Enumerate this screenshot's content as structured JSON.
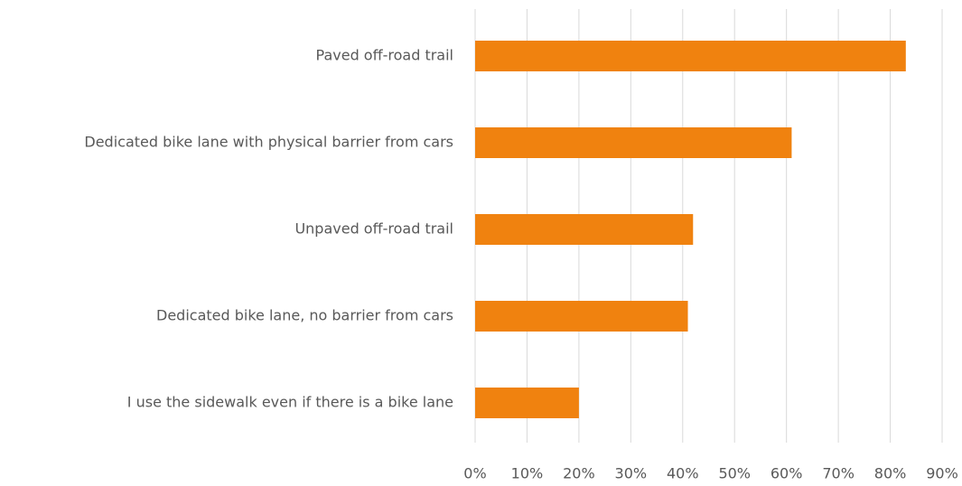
{
  "chart_data": {
    "type": "barh",
    "categories": [
      "Paved off-road trail",
      "Dedicated bike lane with physical barrier from cars",
      "Unpaved off-road trail",
      "Dedicated bike lane, no barrier from cars",
      "I use the sidewalk even if there is a bike lane"
    ],
    "values": [
      83,
      61,
      42,
      41,
      20
    ],
    "color": "#f0820f",
    "xlim": [
      0,
      90
    ],
    "xticks": [
      {
        "value": 0,
        "label": "0%"
      },
      {
        "value": 10,
        "label": "10%"
      },
      {
        "value": 20,
        "label": "20%"
      },
      {
        "value": 30,
        "label": "30%"
      },
      {
        "value": 40,
        "label": "40%"
      },
      {
        "value": 50,
        "label": "50%"
      },
      {
        "value": 60,
        "label": "60%"
      },
      {
        "value": 70,
        "label": "70%"
      },
      {
        "value": 80,
        "label": "80%"
      },
      {
        "value": 90,
        "label": "90%"
      }
    ],
    "grid": true
  }
}
